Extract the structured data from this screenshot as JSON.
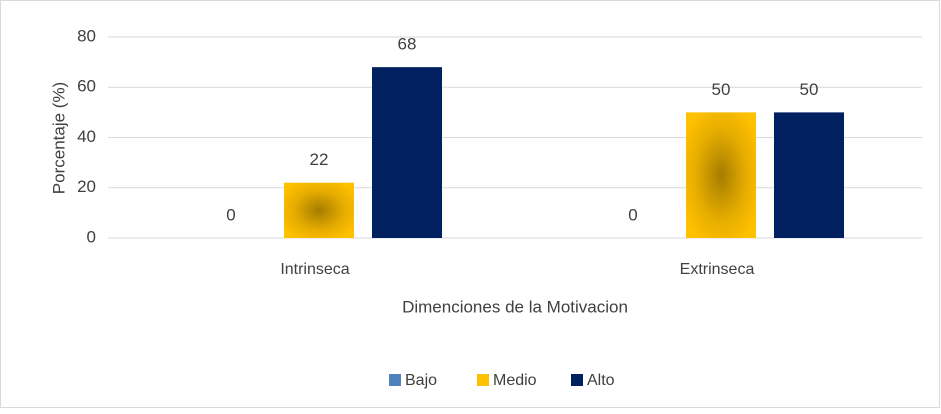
{
  "chart_data": {
    "type": "bar",
    "categories": [
      "Intrinseca",
      "Extrinseca"
    ],
    "series": [
      {
        "name": "Bajo",
        "color": "#4f81bd",
        "values": [
          0,
          0
        ]
      },
      {
        "name": "Medio",
        "color": "#ffc000",
        "values": [
          22,
          50
        ]
      },
      {
        "name": "Alto",
        "color": "#002060",
        "values": [
          68,
          50
        ]
      }
    ],
    "xlabel": "Dimenciones de la Motivacion",
    "ylabel": "Porcentaje (%)",
    "ylim": [
      0,
      80
    ],
    "yticks": [
      0,
      20,
      40,
      60,
      80
    ],
    "grid": true,
    "legend": "bottom"
  }
}
